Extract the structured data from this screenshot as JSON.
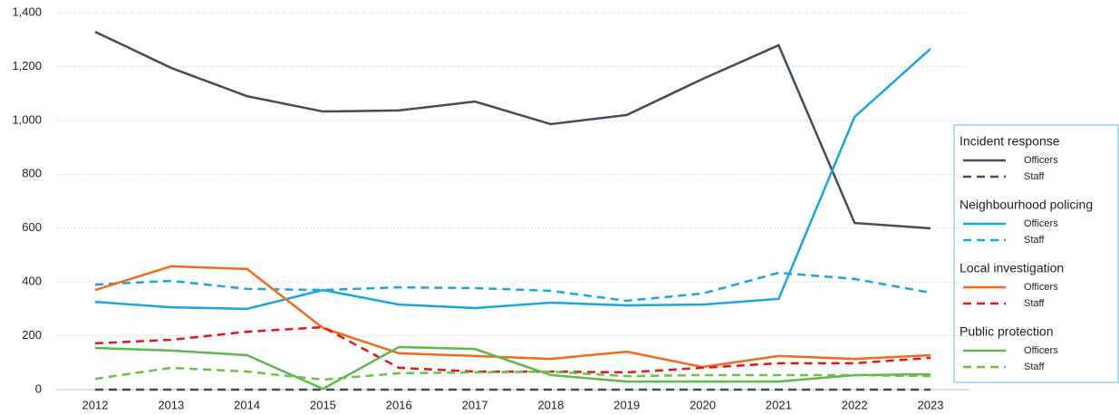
{
  "chart_data": {
    "type": "line",
    "categories": [
      "2012",
      "2013",
      "2014",
      "2015",
      "2016",
      "2017",
      "2018",
      "2019",
      "2020",
      "2021",
      "2022",
      "2023"
    ],
    "ylim": [
      0,
      1400
    ],
    "yticks": [
      0,
      200,
      400,
      600,
      800,
      {
        "value": 1000,
        "label": "1,000"
      },
      {
        "value": 1200,
        "label": "1,200"
      },
      {
        "value": 1400,
        "label": "1,400"
      }
    ],
    "grid": true,
    "legend": "right",
    "series": [
      {
        "group": "Incident response",
        "name": "Officers",
        "color": "#404e5a",
        "dash": false,
        "values": [
          1329,
          1195,
          1090,
          1033,
          1037,
          1070,
          986,
          1020,
          1154,
          1279,
          619,
          599
        ]
      },
      {
        "group": "Incident response",
        "name": "Staff",
        "color": "#404e5a",
        "dash": true,
        "values": [
          0,
          0,
          0,
          0,
          0,
          0,
          0,
          0,
          0,
          0,
          0,
          0
        ]
      },
      {
        "group": "Neighbourhood policing",
        "name": "Officers",
        "color": "#1aa7e0",
        "dash": false,
        "values": [
          326,
          306,
          300,
          370,
          316,
          303,
          323,
          313,
          316,
          337,
          1013,
          1266
        ]
      },
      {
        "group": "Neighbourhood policing",
        "name": "Staff",
        "color": "#1aa7e0",
        "dash": true,
        "values": [
          390,
          404,
          374,
          370,
          380,
          377,
          367,
          330,
          357,
          434,
          411,
          360
        ]
      },
      {
        "group": "Local investigation",
        "name": "Officers",
        "color": "#f26a1b",
        "dash": false,
        "values": [
          370,
          458,
          448,
          229,
          135,
          125,
          114,
          141,
          84,
          125,
          114,
          128
        ]
      },
      {
        "group": "Local investigation",
        "name": "Staff",
        "color": "#e8141c",
        "dash": true,
        "values": [
          172,
          185,
          215,
          232,
          81,
          67,
          67,
          64,
          81,
          98,
          98,
          118
        ]
      },
      {
        "group": "Public protection",
        "name": "Officers",
        "color": "#5db94b",
        "dash": false,
        "values": [
          155,
          145,
          128,
          3,
          158,
          151,
          54,
          30,
          30,
          30,
          54,
          57
        ]
      },
      {
        "group": "Public protection",
        "name": "Staff",
        "color": "#6cc04a",
        "dash": true,
        "values": [
          40,
          81,
          67,
          37,
          61,
          64,
          67,
          50,
          54,
          54,
          54,
          50
        ]
      }
    ]
  }
}
